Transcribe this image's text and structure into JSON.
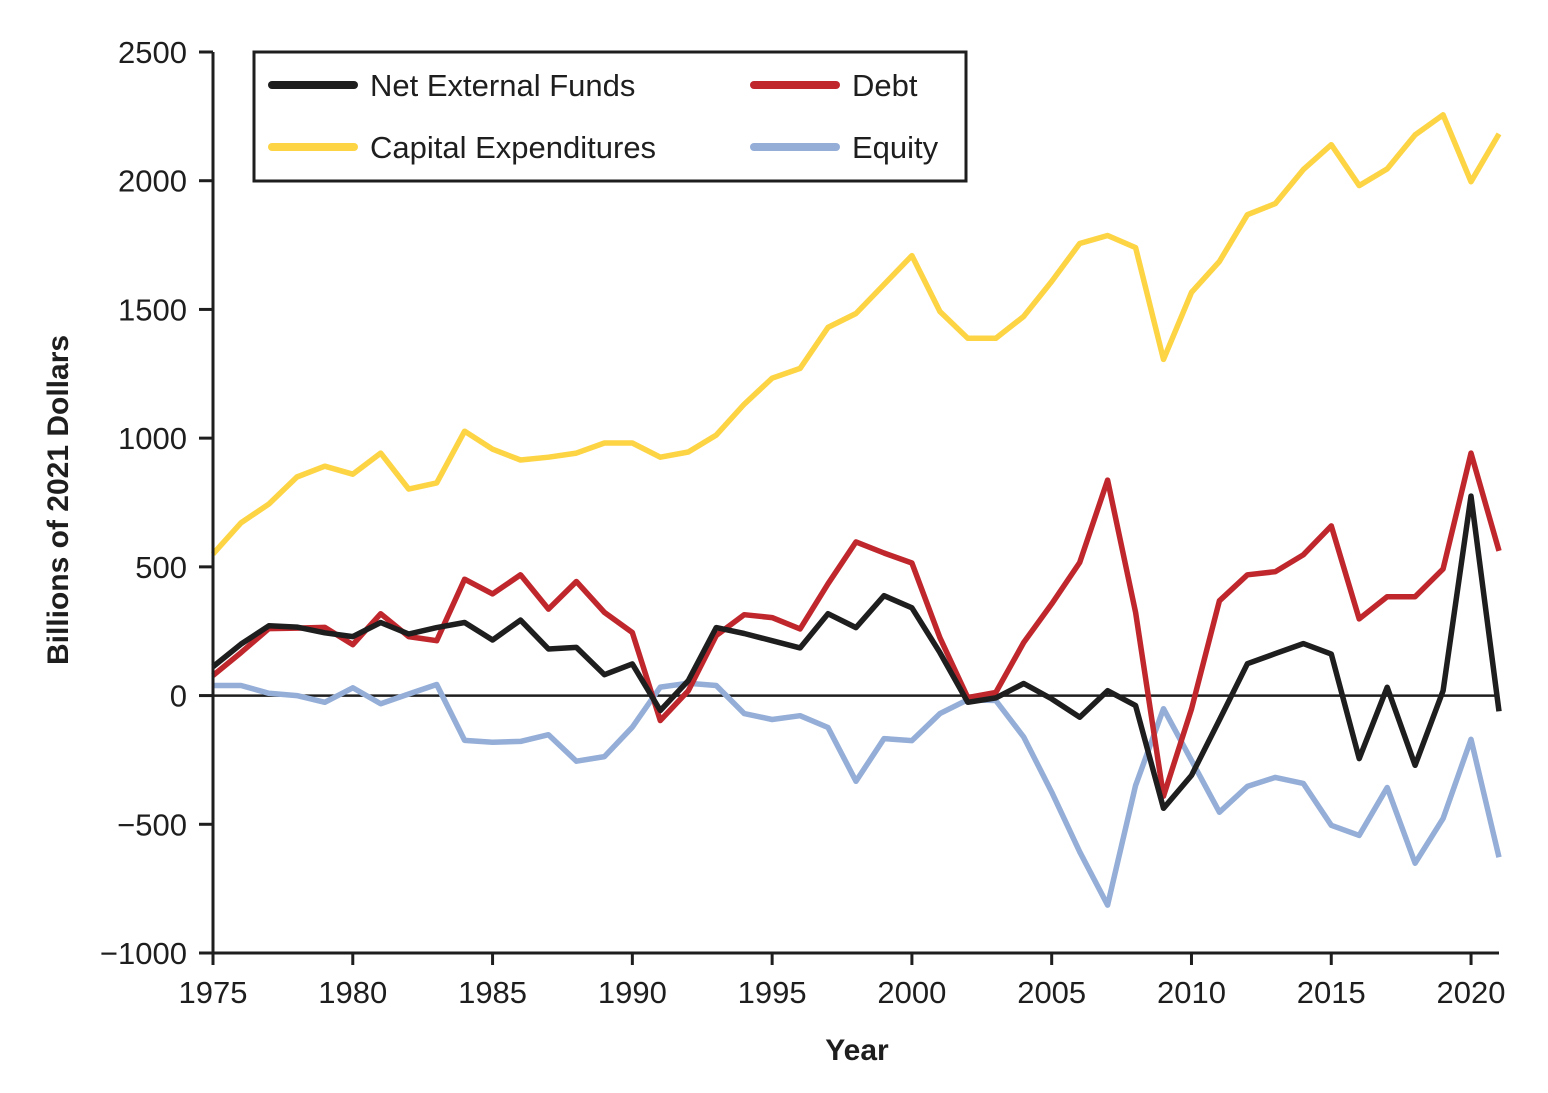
{
  "chart_data": {
    "type": "line",
    "title": "",
    "xlabel": "Year",
    "ylabel": "Billions of 2021 Dollars",
    "xlim": [
      1975,
      2021
    ],
    "ylim": [
      -1000,
      2500
    ],
    "x_ticks": [
      1975,
      1980,
      1985,
      1990,
      1995,
      2000,
      2005,
      2010,
      2015,
      2020
    ],
    "x_tick_labels": [
      "1975",
      "1980",
      "1985",
      "1990",
      "1995",
      "2000",
      "2005",
      "2010",
      "2015",
      "2020"
    ],
    "y_ticks": [
      -1000,
      -500,
      0,
      500,
      1000,
      1500,
      2000,
      2500
    ],
    "y_tick_labels": [
      "−1000",
      "−500",
      "0",
      "500",
      "1000",
      "1500",
      "2000",
      "2500"
    ],
    "zero_line": true,
    "grid": false,
    "legend_position": "top-left",
    "x": [
      1975,
      1976,
      1977,
      1978,
      1979,
      1980,
      1981,
      1982,
      1983,
      1984,
      1985,
      1986,
      1987,
      1988,
      1989,
      1990,
      1991,
      1992,
      1993,
      1994,
      1995,
      1996,
      1997,
      1998,
      1999,
      2000,
      2001,
      2002,
      2003,
      2004,
      2005,
      2006,
      2007,
      2008,
      2009,
      2010,
      2011,
      2012,
      2013,
      2014,
      2015,
      2016,
      2017,
      2018,
      2019,
      2020,
      2021
    ],
    "series": [
      {
        "name": "Net External Funds",
        "color": "#1e1e1e",
        "values": [
          112,
          200,
          271,
          266,
          244,
          229,
          284,
          239,
          264,
          284,
          216,
          293,
          181,
          187,
          81,
          123,
          -58,
          58,
          264,
          241,
          213,
          185,
          318,
          264,
          388,
          341,
          167,
          -26,
          -9,
          47,
          -13,
          -84,
          19,
          -39,
          -438,
          -310,
          -95,
          124,
          163,
          202,
          161,
          -245,
          32,
          -271,
          19,
          775,
          -61
        ]
      },
      {
        "name": "Debt",
        "color": "#c0272d",
        "values": [
          78,
          167,
          260,
          262,
          265,
          198,
          318,
          229,
          213,
          452,
          395,
          469,
          336,
          443,
          323,
          245,
          -97,
          19,
          233,
          314,
          303,
          259,
          434,
          597,
          554,
          515,
          225,
          -8,
          12,
          206,
          356,
          517,
          837,
          323,
          -391,
          -52,
          368,
          469,
          481,
          547,
          659,
          298,
          384,
          384,
          492,
          942,
          562
        ]
      },
      {
        "name": "Capital Expenditures",
        "color": "#fdd444",
        "values": [
          550,
          671,
          744,
          849,
          891,
          860,
          942,
          802,
          826,
          1027,
          957,
          915,
          926,
          942,
          981,
          981,
          926,
          946,
          1012,
          1132,
          1233,
          1271,
          1430,
          1484,
          1597,
          1709,
          1492,
          1388,
          1388,
          1473,
          1609,
          1756,
          1787,
          1740,
          1306,
          1566,
          1686,
          1868,
          1911,
          2043,
          2140,
          1981,
          2046,
          2178,
          2256,
          1996,
          2182
        ]
      },
      {
        "name": "Equity",
        "color": "#94aed8",
        "values": [
          39,
          39,
          9,
          0,
          -26,
          30,
          -32,
          6,
          43,
          -174,
          -181,
          -178,
          -152,
          -255,
          -237,
          -123,
          33,
          48,
          39,
          -70,
          -93,
          -78,
          -124,
          -333,
          -167,
          -175,
          -70,
          -16,
          -19,
          -161,
          -375,
          -607,
          -814,
          -349,
          -51,
          -252,
          -453,
          -353,
          -318,
          -341,
          -504,
          -543,
          -357,
          -651,
          -477,
          -170,
          -628
        ]
      }
    ],
    "legend": [
      {
        "label": "Net External Funds",
        "color": "#1e1e1e"
      },
      {
        "label": "Debt",
        "color": "#c0272d"
      },
      {
        "label": "Capital Expenditures",
        "color": "#fdd444"
      },
      {
        "label": "Equity",
        "color": "#94aed8"
      }
    ]
  }
}
